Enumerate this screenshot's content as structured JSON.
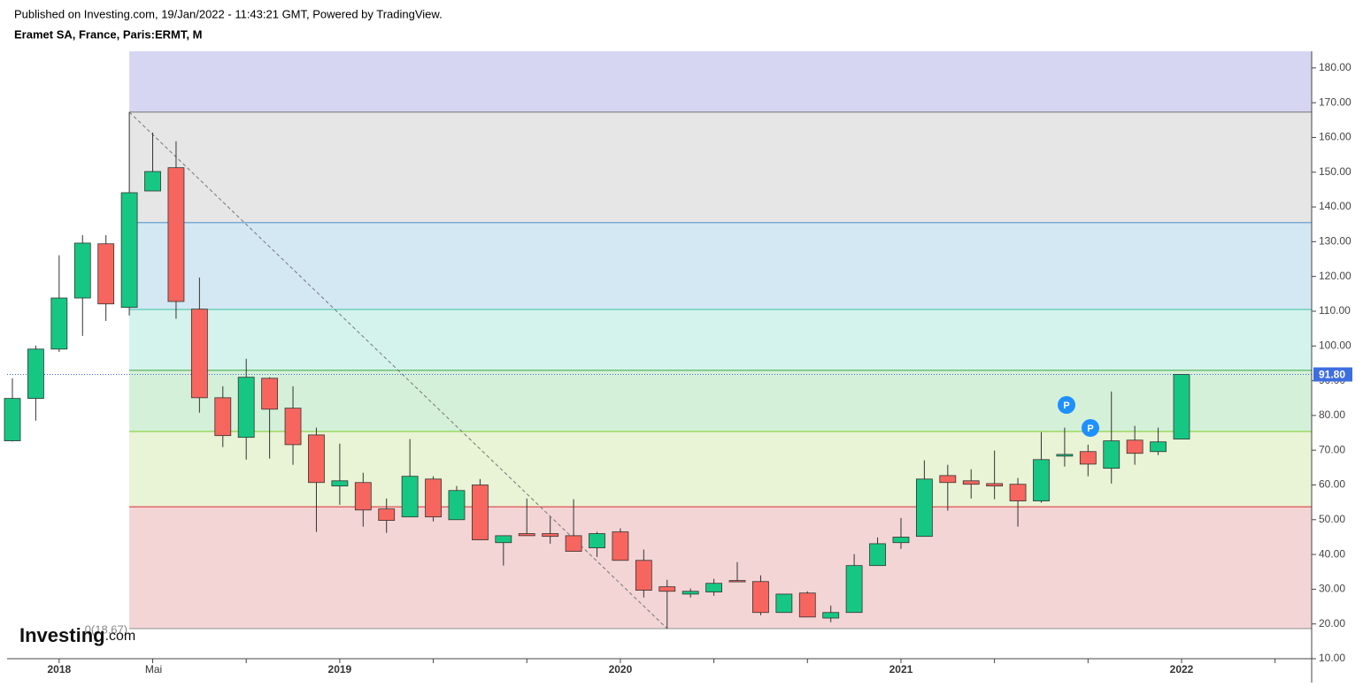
{
  "header": {
    "published": "Published on Investing.com, 19/Jan/2022 - 11:43:21 GMT, Powered by TradingView.",
    "symbol": "Eramet SA, France, Paris:ERMT, M"
  },
  "logo": {
    "name": "Investing",
    "suffix": ".com"
  },
  "chart_data": {
    "type": "candlestick",
    "categories": [
      null,
      null,
      "2018",
      null,
      null,
      null,
      "Mai",
      null,
      null,
      null,
      null,
      null,
      null,
      null,
      "2019",
      null,
      null,
      null,
      null,
      null,
      null,
      null,
      null,
      null,
      null,
      null,
      "2020",
      null,
      null,
      null,
      null,
      null,
      null,
      null,
      null,
      null,
      null,
      null,
      "2021",
      null,
      null,
      null,
      null,
      null,
      null,
      null,
      null,
      null,
      null,
      null,
      "2022"
    ],
    "open": [
      72.7,
      84.9,
      99.1,
      113.8,
      129.4,
      111.1,
      144.6,
      151.3,
      110.6,
      85.1,
      73.7,
      90.7,
      82.1,
      74.4,
      59.7,
      60.7,
      53.1,
      50.8,
      61.7,
      50.0,
      60.0,
      43.4,
      46.0,
      46.0,
      45.4,
      41.9,
      46.5,
      38.3,
      30.7,
      28.6,
      29.2,
      32.5,
      32.2,
      23.3,
      28.9,
      21.7,
      23.3,
      36.8,
      43.4,
      45.2,
      62.7,
      61.2,
      60.4,
      60.2,
      55.4,
      68.3,
      69.6,
      64.8,
      72.9,
      69.6,
      73.2
    ],
    "high": [
      90.7,
      100.1,
      126.1,
      131.9,
      131.9,
      167.3,
      161.4,
      158.9,
      119.7,
      88.4,
      96.3,
      91.0,
      88.4,
      76.5,
      71.9,
      63.5,
      56.1,
      73.2,
      62.5,
      59.7,
      61.7,
      45.4,
      56.1,
      50.8,
      55.9,
      46.5,
      47.5,
      41.4,
      32.7,
      30.2,
      33.0,
      37.8,
      34.0,
      28.6,
      29.4,
      25.3,
      40.1,
      44.9,
      50.5,
      67.1,
      65.8,
      64.5,
      69.9,
      62.0,
      75.2,
      76.5,
      71.6,
      86.9,
      77.0,
      76.5,
      91.8
    ],
    "low": [
      72.5,
      78.5,
      98.3,
      102.9,
      107.2,
      108.8,
      144.6,
      107.8,
      80.8,
      70.9,
      67.3,
      67.6,
      65.8,
      46.5,
      54.3,
      48.0,
      46.2,
      50.8,
      49.5,
      50.0,
      44.2,
      36.8,
      45.4,
      43.1,
      40.9,
      39.3,
      38.3,
      27.6,
      18.67,
      27.6,
      28.1,
      32.2,
      22.5,
      23.3,
      22.0,
      20.5,
      23.3,
      36.8,
      41.6,
      45.2,
      52.6,
      56.1,
      55.9,
      48.0,
      54.9,
      65.3,
      62.5,
      60.4,
      65.8,
      68.6,
      73.2
    ],
    "close": [
      84.9,
      99.1,
      113.8,
      129.6,
      112.1,
      144.1,
      150.2,
      112.8,
      85.1,
      74.2,
      91.0,
      81.8,
      71.6,
      60.7,
      61.2,
      52.8,
      49.8,
      62.5,
      50.8,
      58.4,
      44.2,
      45.4,
      45.4,
      45.2,
      40.9,
      46.0,
      38.3,
      29.7,
      29.4,
      29.4,
      31.7,
      32.2,
      23.3,
      28.6,
      22.0,
      23.3,
      36.8,
      43.1,
      45.0,
      61.7,
      60.7,
      60.2,
      59.7,
      55.4,
      67.3,
      68.8,
      66.0,
      72.7,
      69.1,
      72.4,
      91.8
    ],
    "up_color": "#16c784",
    "down_color": "#f7665e",
    "ylim": [
      10,
      184.8
    ],
    "yticks": [
      {
        "value": 10,
        "label": "10.00"
      },
      {
        "value": 20,
        "label": "20.00"
      },
      {
        "value": 30,
        "label": "30.00"
      },
      {
        "value": 40,
        "label": "40.00"
      },
      {
        "value": 50,
        "label": "50.00"
      },
      {
        "value": 60,
        "label": "60.00"
      },
      {
        "value": 70,
        "label": "70.00"
      },
      {
        "value": 80,
        "label": "80.00"
      },
      {
        "value": 90,
        "label": "90.00"
      },
      {
        "value": 100,
        "label": "100.00"
      },
      {
        "value": 110,
        "label": "110.00"
      },
      {
        "value": 120,
        "label": "120.00"
      },
      {
        "value": 130,
        "label": "130.00"
      },
      {
        "value": 140,
        "label": "140.00"
      },
      {
        "value": 150,
        "label": "150.00"
      },
      {
        "value": 160,
        "label": "160.00"
      },
      {
        "value": 170,
        "label": "170.00"
      },
      {
        "value": 180,
        "label": "180.00"
      }
    ],
    "last_price": {
      "value": 91.8,
      "label": "91.80"
    },
    "fib": {
      "label": "0(18.67)",
      "levels": [
        18.67,
        53.7,
        75.4,
        93.0,
        110.5,
        135.5,
        167.3
      ],
      "line_colors": [
        "#999999",
        "#e05050",
        "#8fd44a",
        "#4caf50",
        "#5cc9b8",
        "#6a9fd0",
        "#888888"
      ],
      "band_colors": [
        "#f3d5d5",
        "#e9f3d5",
        "#d5f0d9",
        "#d4f3ec",
        "#d4e8f4",
        "#e6e6e6",
        "#d6d6f3"
      ]
    },
    "markers": [
      "P",
      "P"
    ]
  }
}
